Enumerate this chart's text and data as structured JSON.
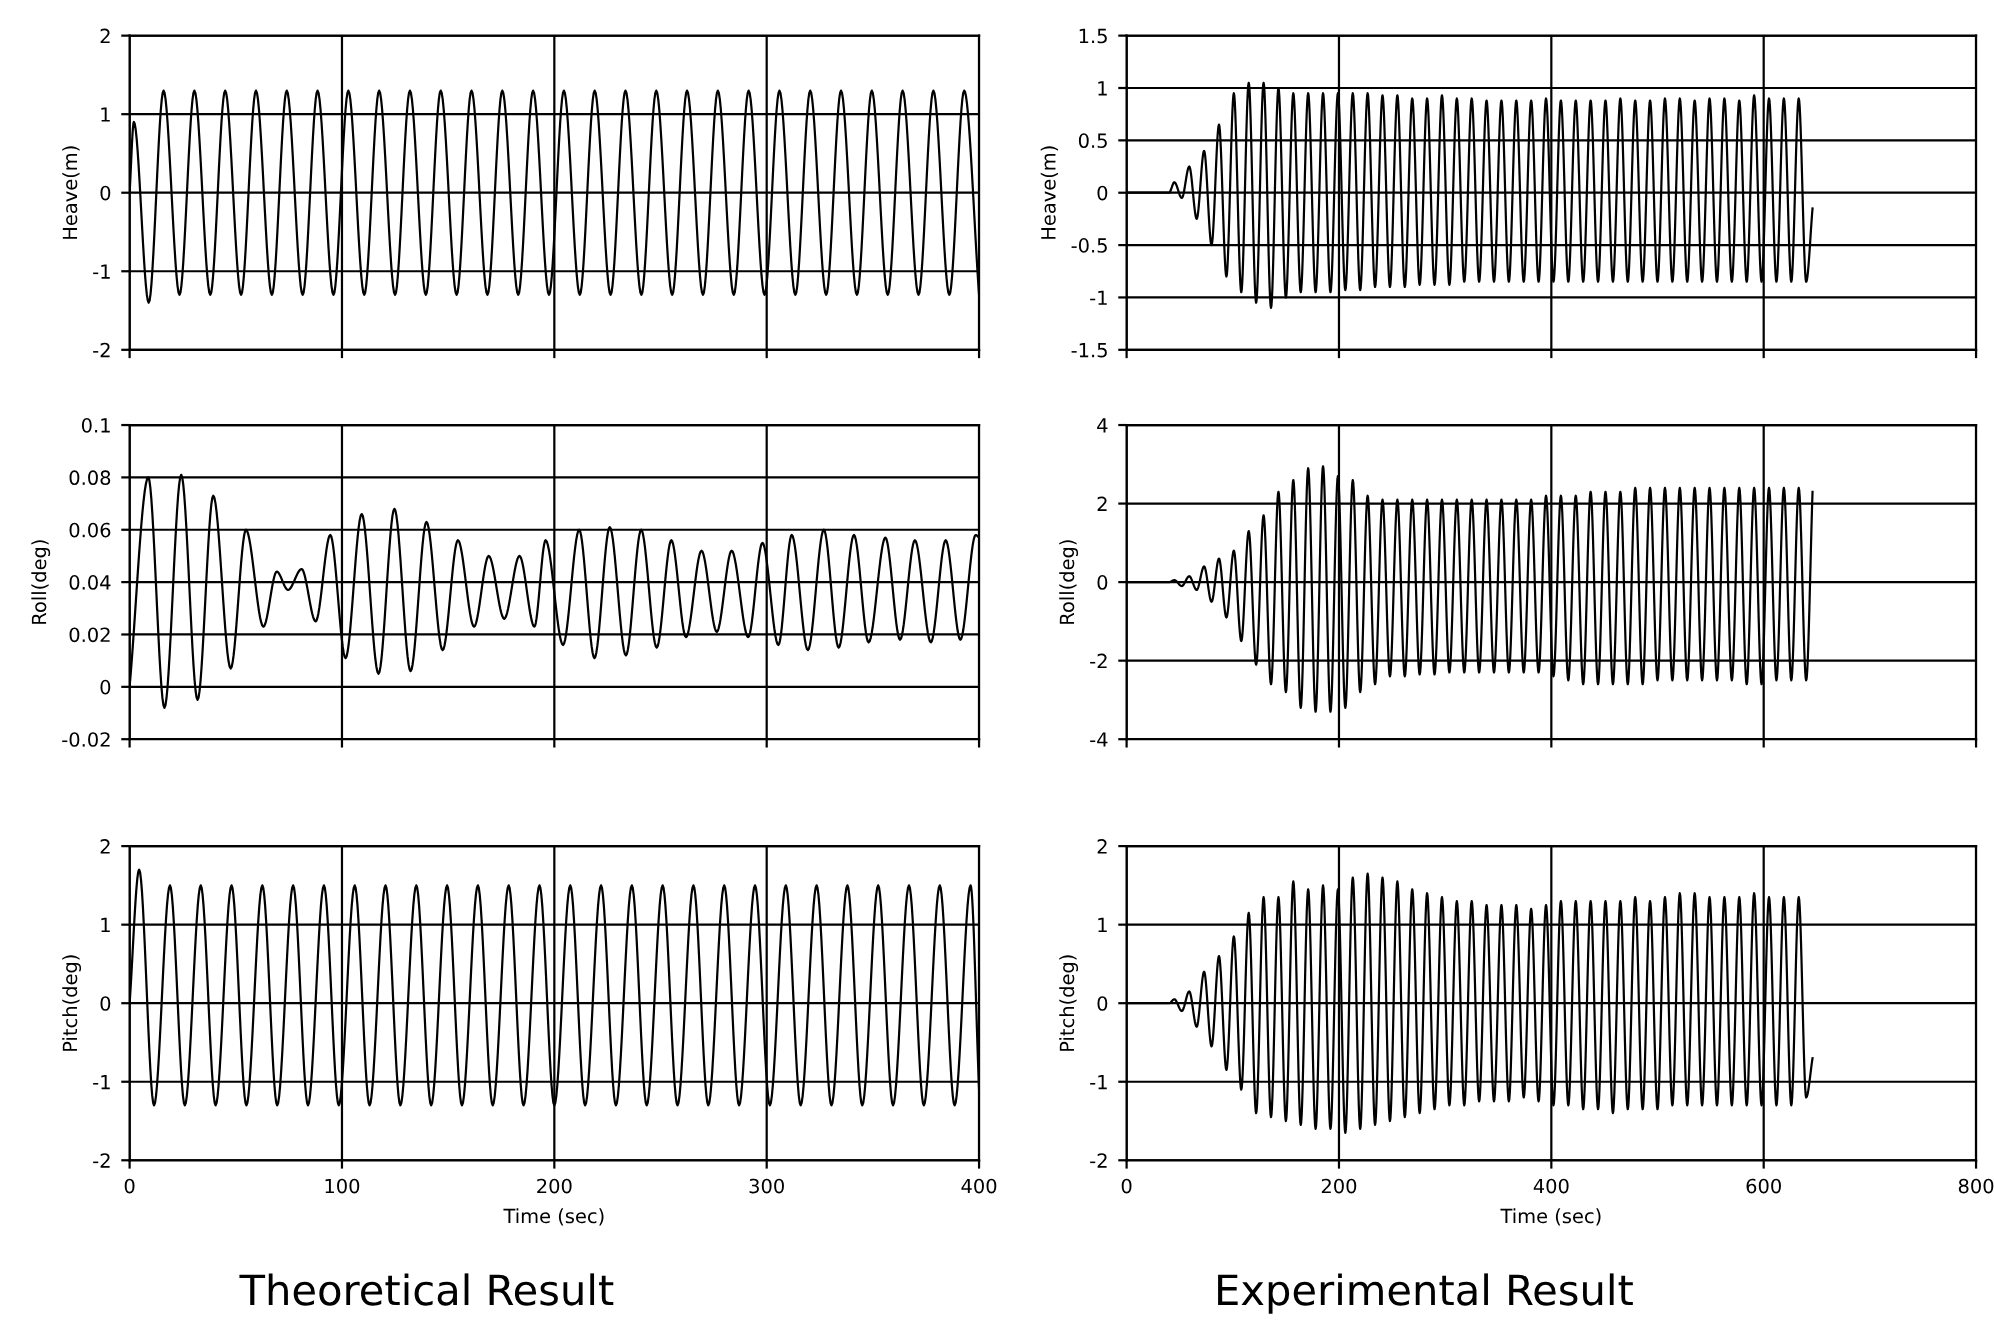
{
  "chart_data": [
    {
      "type": "line",
      "ylabel": "Heave(m)",
      "xlim": [
        0,
        400
      ],
      "xticks": [
        0,
        100,
        200,
        300,
        400
      ],
      "ylim": [
        -2,
        2
      ],
      "yticks": [
        -2,
        -1,
        0,
        1,
        2
      ],
      "grid": true,
      "tick_labels": "y",
      "x": [
        0,
        2,
        9,
        16,
        23.5,
        30.5,
        38,
        45,
        52.5,
        59.5,
        67,
        74,
        81.5,
        88.5,
        96,
        103,
        110.5,
        117.5,
        125,
        132,
        139.5,
        146.5,
        154,
        161,
        168.5,
        175.5,
        183,
        190,
        197.5,
        204.5,
        212,
        219,
        226.5,
        233.5,
        241,
        248,
        255.5,
        262.5,
        270,
        277,
        284.5,
        291.5,
        299,
        306,
        313.5,
        320.5,
        328,
        335,
        342.5,
        349.5,
        357,
        364,
        371.5,
        378.5,
        386,
        393,
        400
      ],
      "series": [
        {
          "color": "#000000",
          "values": [
            0,
            0.9,
            -1.4,
            1.3,
            -1.3,
            1.3,
            -1.3,
            1.3,
            -1.3,
            1.3,
            -1.3,
            1.3,
            -1.3,
            1.3,
            -1.3,
            1.3,
            -1.3,
            1.3,
            -1.3,
            1.3,
            -1.3,
            1.3,
            -1.3,
            1.3,
            -1.3,
            1.3,
            -1.3,
            1.3,
            -1.3,
            1.3,
            -1.3,
            1.3,
            -1.3,
            1.3,
            -1.3,
            1.3,
            -1.3,
            1.3,
            -1.3,
            1.3,
            -1.3,
            1.3,
            -1.3,
            1.3,
            -1.3,
            1.3,
            -1.3,
            1.3,
            -1.3,
            1.3,
            -1.3,
            1.3,
            -1.3,
            1.3,
            -1.3,
            1.3,
            -1.3
          ]
        }
      ]
    },
    {
      "type": "line",
      "ylabel": "Heave(m)",
      "xlim": [
        0,
        800
      ],
      "xticks": [
        0,
        200,
        400,
        600,
        800
      ],
      "ylim": [
        -1.5,
        1.5
      ],
      "yticks": [
        -1.5,
        -1,
        -0.5,
        0,
        0.5,
        1,
        1.5
      ],
      "grid": true,
      "tick_labels": "y",
      "x": [
        0,
        40,
        45,
        52,
        59,
        66,
        73,
        80,
        87,
        94,
        101,
        108,
        115,
        122,
        129,
        136,
        143,
        150,
        157,
        164,
        171,
        178,
        185,
        192,
        199,
        206,
        213,
        220,
        227,
        234,
        241,
        248,
        255,
        262,
        269,
        276,
        283,
        290,
        297,
        304,
        311,
        318,
        325,
        332,
        339,
        346,
        353,
        360,
        367,
        374,
        381,
        388,
        395,
        402,
        409,
        416,
        423,
        430,
        437,
        444,
        451,
        458,
        465,
        472,
        479,
        486,
        493,
        500,
        507,
        514,
        521,
        528,
        535,
        542,
        549,
        556,
        563,
        570,
        577,
        584,
        591,
        598,
        605,
        612,
        619,
        626,
        633,
        640,
        646
      ],
      "series": [
        {
          "color": "#000000",
          "values": [
            0,
            0,
            0.1,
            -0.05,
            0.25,
            -0.25,
            0.4,
            -0.5,
            0.65,
            -0.8,
            0.95,
            -0.95,
            1.05,
            -1.05,
            1.05,
            -1.1,
            1.0,
            -1.0,
            0.95,
            -0.95,
            0.95,
            -0.95,
            0.95,
            -0.95,
            0.95,
            -0.93,
            0.95,
            -0.93,
            0.95,
            -0.9,
            0.93,
            -0.9,
            0.93,
            -0.9,
            0.9,
            -0.88,
            0.9,
            -0.88,
            0.93,
            -0.88,
            0.9,
            -0.85,
            0.9,
            -0.85,
            0.88,
            -0.85,
            0.88,
            -0.85,
            0.88,
            -0.85,
            0.88,
            -0.85,
            0.9,
            -0.85,
            0.88,
            -0.85,
            0.88,
            -0.85,
            0.88,
            -0.85,
            0.88,
            -0.85,
            0.9,
            -0.85,
            0.88,
            -0.85,
            0.88,
            -0.85,
            0.9,
            -0.85,
            0.9,
            -0.85,
            0.88,
            -0.85,
            0.9,
            -0.85,
            0.9,
            -0.85,
            0.88,
            -0.85,
            0.93,
            -0.85,
            0.9,
            -0.85,
            0.9,
            -0.85,
            0.9,
            -0.85,
            -0.15
          ]
        }
      ]
    },
    {
      "type": "line",
      "ylabel": "Roll(deg)",
      "xlim": [
        0,
        400
      ],
      "xticks": [
        0,
        100,
        200,
        300,
        400
      ],
      "ylim": [
        -0.02,
        0.1
      ],
      "yticks": [
        -0.02,
        0,
        0.02,
        0.04,
        0.06,
        0.08,
        0.1
      ],
      "grid": true,
      "tick_labels": "y",
      "x": [
        0,
        8.8,
        16.4,
        24.3,
        32,
        39.4,
        47.6,
        54.8,
        63,
        69.3,
        74.6,
        81,
        87.6,
        94.5,
        101.7,
        109.3,
        117.2,
        124.7,
        132.3,
        139.8,
        147.4,
        154.6,
        162.2,
        169.1,
        176.4,
        183.6,
        190.6,
        195.9,
        204.1,
        211.7,
        218.9,
        226.1,
        233.7,
        240.9,
        248.2,
        255.1,
        262,
        269.3,
        276.5,
        283.5,
        291.3,
        298,
        305.5,
        311.8,
        319.4,
        326.9,
        333.9,
        341.1,
        348,
        355.9,
        362.8,
        369.8,
        377.3,
        384.3,
        391.2,
        398.4,
        400
      ],
      "series": [
        {
          "color": "#000000",
          "values": [
            0,
            0.08,
            -0.008,
            0.081,
            -0.005,
            0.073,
            0.007,
            0.06,
            0.023,
            0.044,
            0.037,
            0.045,
            0.025,
            0.058,
            0.011,
            0.066,
            0.005,
            0.068,
            0.006,
            0.063,
            0.014,
            0.056,
            0.023,
            0.05,
            0.026,
            0.05,
            0.023,
            0.056,
            0.016,
            0.06,
            0.011,
            0.061,
            0.012,
            0.06,
            0.015,
            0.056,
            0.019,
            0.052,
            0.021,
            0.052,
            0.019,
            0.055,
            0.016,
            0.058,
            0.014,
            0.06,
            0.015,
            0.058,
            0.017,
            0.057,
            0.018,
            0.056,
            0.017,
            0.056,
            0.018,
            0.058,
            0.057
          ]
        }
      ]
    },
    {
      "type": "line",
      "ylabel": "Roll(deg)",
      "xlim": [
        0,
        800
      ],
      "xticks": [
        0,
        200,
        400,
        600,
        800
      ],
      "ylim": [
        -4,
        4
      ],
      "yticks": [
        -4,
        -2,
        0,
        2,
        4
      ],
      "grid": true,
      "tick_labels": "y",
      "x": [
        0,
        40,
        45,
        52,
        59,
        66,
        73,
        80,
        87,
        94,
        101,
        108,
        115,
        122,
        129,
        136,
        143,
        150,
        157,
        164,
        171,
        178,
        185,
        192,
        199,
        206,
        213,
        220,
        227,
        234,
        241,
        248,
        255,
        262,
        269,
        276,
        283,
        290,
        297,
        304,
        311,
        318,
        325,
        332,
        339,
        346,
        353,
        360,
        367,
        374,
        381,
        388,
        395,
        402,
        409,
        416,
        423,
        430,
        437,
        444,
        451,
        458,
        465,
        472,
        479,
        486,
        493,
        500,
        507,
        514,
        521,
        528,
        535,
        542,
        549,
        556,
        563,
        570,
        577,
        584,
        591,
        598,
        605,
        612,
        619,
        626,
        633,
        640,
        646
      ],
      "series": [
        {
          "color": "#000000",
          "values": [
            0,
            0,
            0.05,
            -0.1,
            0.15,
            -0.2,
            0.4,
            -0.5,
            0.6,
            -0.9,
            0.8,
            -1.5,
            1.3,
            -2.1,
            1.7,
            -2.6,
            2.3,
            -2.8,
            2.6,
            -3.2,
            2.9,
            -3.3,
            2.95,
            -3.3,
            2.7,
            -3.2,
            2.6,
            -2.8,
            2.2,
            -2.6,
            2.1,
            -2.4,
            2.1,
            -2.4,
            2.1,
            -2.35,
            2.1,
            -2.35,
            2.1,
            -2.3,
            2.1,
            -2.3,
            2.1,
            -2.3,
            2.1,
            -2.3,
            2.1,
            -2.3,
            2.1,
            -2.3,
            2.1,
            -2.3,
            2.2,
            -2.4,
            2.2,
            -2.5,
            2.2,
            -2.6,
            2.3,
            -2.6,
            2.3,
            -2.6,
            2.3,
            -2.6,
            2.4,
            -2.6,
            2.4,
            -2.5,
            2.4,
            -2.5,
            2.4,
            -2.5,
            2.4,
            -2.5,
            2.4,
            -2.5,
            2.4,
            -2.5,
            2.4,
            -2.6,
            2.4,
            -2.6,
            2.4,
            -2.5,
            2.4,
            -2.5,
            2.4,
            -2.5,
            2.3
          ]
        }
      ]
    },
    {
      "type": "line",
      "ylabel": "Pitch(deg)",
      "xlabel": "Time (sec)",
      "annotations": [
        "Theoretical Result"
      ],
      "xlim": [
        0,
        400
      ],
      "xticks": [
        0,
        100,
        200,
        300,
        400
      ],
      "ylim": [
        -2,
        2
      ],
      "yticks": [
        -2,
        -1,
        0,
        1,
        2
      ],
      "grid": true,
      "x": [
        0,
        4.5,
        11.5,
        19,
        26,
        33.5,
        40.5,
        48,
        55,
        62.5,
        69.5,
        77,
        84,
        91.5,
        98.5,
        106,
        113,
        120.5,
        127.5,
        135,
        142,
        149.5,
        156.5,
        164,
        171,
        178.5,
        185.5,
        193,
        200,
        207.5,
        214.5,
        222,
        229,
        236.5,
        243.5,
        251,
        258,
        265.5,
        272.5,
        280,
        287,
        294.5,
        301.5,
        309,
        316,
        323.5,
        330.5,
        338,
        345,
        352.5,
        359.5,
        367,
        374,
        381.5,
        388.5,
        396,
        400
      ],
      "series": [
        {
          "color": "#000000",
          "values": [
            0,
            1.7,
            -1.3,
            1.5,
            -1.3,
            1.5,
            -1.3,
            1.5,
            -1.3,
            1.5,
            -1.3,
            1.5,
            -1.3,
            1.5,
            -1.3,
            1.5,
            -1.3,
            1.5,
            -1.3,
            1.5,
            -1.3,
            1.5,
            -1.3,
            1.5,
            -1.3,
            1.5,
            -1.3,
            1.5,
            -1.3,
            1.5,
            -1.3,
            1.5,
            -1.3,
            1.5,
            -1.3,
            1.5,
            -1.3,
            1.5,
            -1.3,
            1.5,
            -1.3,
            1.5,
            -1.3,
            1.5,
            -1.3,
            1.5,
            -1.3,
            1.5,
            -1.3,
            1.5,
            -1.3,
            1.5,
            -1.3,
            1.5,
            -1.3,
            1.5,
            -1.1
          ]
        }
      ]
    },
    {
      "type": "line",
      "ylabel": "Pitch(deg)",
      "xlabel": "Time (sec)",
      "annotations": [
        "Experimental Result"
      ],
      "xlim": [
        0,
        800
      ],
      "xticks": [
        0,
        200,
        400,
        600,
        800
      ],
      "ylim": [
        -2,
        2
      ],
      "yticks": [
        -2,
        -1,
        0,
        1,
        2
      ],
      "grid": true,
      "x": [
        0,
        40,
        45,
        52,
        59,
        66,
        73,
        80,
        87,
        94,
        101,
        108,
        115,
        122,
        129,
        136,
        143,
        150,
        157,
        164,
        171,
        178,
        185,
        192,
        199,
        206,
        213,
        220,
        227,
        234,
        241,
        248,
        255,
        262,
        269,
        276,
        283,
        290,
        297,
        304,
        311,
        318,
        325,
        332,
        339,
        346,
        353,
        360,
        367,
        374,
        381,
        388,
        395,
        402,
        409,
        416,
        423,
        430,
        437,
        444,
        451,
        458,
        465,
        472,
        479,
        486,
        493,
        500,
        507,
        514,
        521,
        528,
        535,
        542,
        549,
        556,
        563,
        570,
        577,
        584,
        591,
        598,
        605,
        612,
        619,
        626,
        633,
        640,
        646
      ],
      "series": [
        {
          "color": "#000000",
          "values": [
            0,
            0,
            0.05,
            -0.1,
            0.15,
            -0.3,
            0.4,
            -0.55,
            0.6,
            -0.85,
            0.85,
            -1.1,
            1.15,
            -1.4,
            1.35,
            -1.45,
            1.35,
            -1.5,
            1.55,
            -1.55,
            1.45,
            -1.6,
            1.5,
            -1.6,
            1.45,
            -1.65,
            1.6,
            -1.6,
            1.65,
            -1.55,
            1.6,
            -1.5,
            1.55,
            -1.45,
            1.45,
            -1.4,
            1.4,
            -1.35,
            1.35,
            -1.3,
            1.3,
            -1.3,
            1.3,
            -1.25,
            1.25,
            -1.25,
            1.25,
            -1.25,
            1.25,
            -1.2,
            1.2,
            -1.25,
            1.25,
            -1.3,
            1.3,
            -1.3,
            1.3,
            -1.35,
            1.3,
            -1.35,
            1.3,
            -1.4,
            1.3,
            -1.35,
            1.35,
            -1.35,
            1.3,
            -1.35,
            1.35,
            -1.3,
            1.4,
            -1.3,
            1.4,
            -1.3,
            1.35,
            -1.3,
            1.35,
            -1.3,
            1.35,
            -1.3,
            1.4,
            -1.3,
            1.35,
            -1.3,
            1.35,
            -1.3,
            1.35,
            -1.2,
            -0.7
          ]
        }
      ]
    }
  ]
}
